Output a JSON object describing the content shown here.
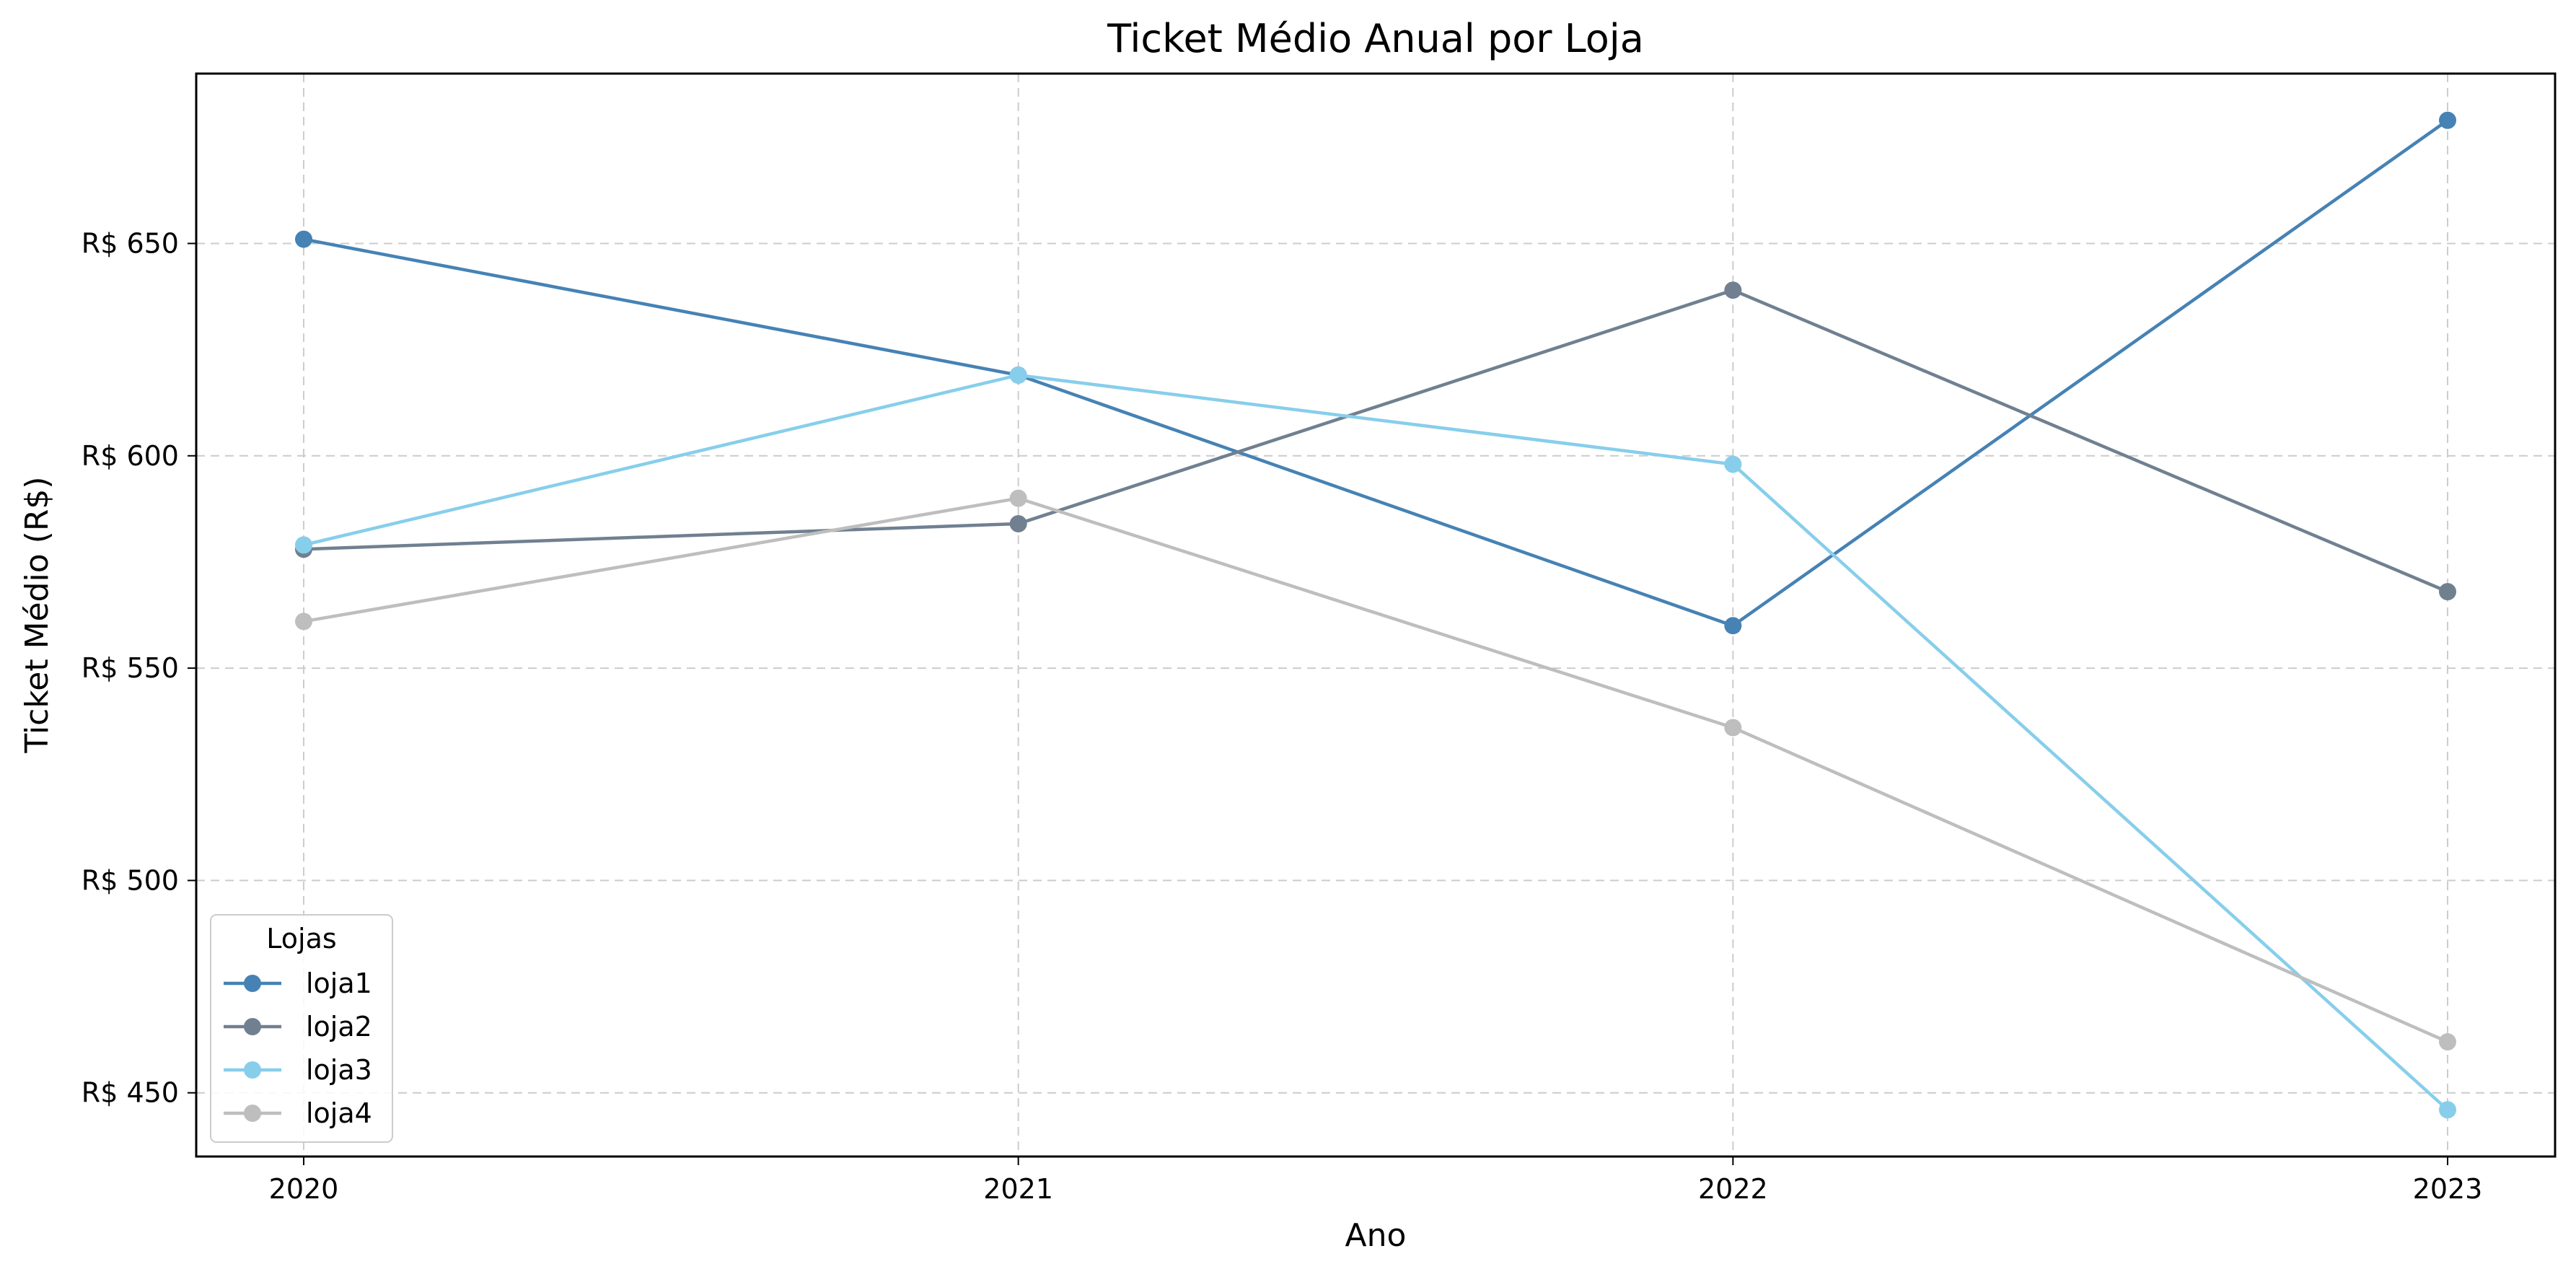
{
  "chart_data": {
    "type": "line",
    "title": "Ticket Médio Anual por Loja",
    "xlabel": "Ano",
    "ylabel": "Ticket Médio (R$)",
    "y_tick_prefix": "R$ ",
    "x": [
      "2020",
      "2021",
      "2022",
      "2023"
    ],
    "ylim": [
      435,
      690
    ],
    "y_ticks": [
      450,
      500,
      550,
      600,
      650
    ],
    "grid": true,
    "legend": {
      "title": "Lojas",
      "placement": "lower-left"
    },
    "series": [
      {
        "name": "loja1",
        "color": "#4682b4",
        "values": [
          651,
          619,
          560,
          679
        ]
      },
      {
        "name": "loja2",
        "color": "#708090",
        "values": [
          578,
          584,
          639,
          568
        ]
      },
      {
        "name": "loja3",
        "color": "#87ceeb",
        "values": [
          579,
          619,
          598,
          446
        ]
      },
      {
        "name": "loja4",
        "color": "#bebebe",
        "values": [
          561,
          590,
          536,
          462
        ]
      }
    ]
  }
}
